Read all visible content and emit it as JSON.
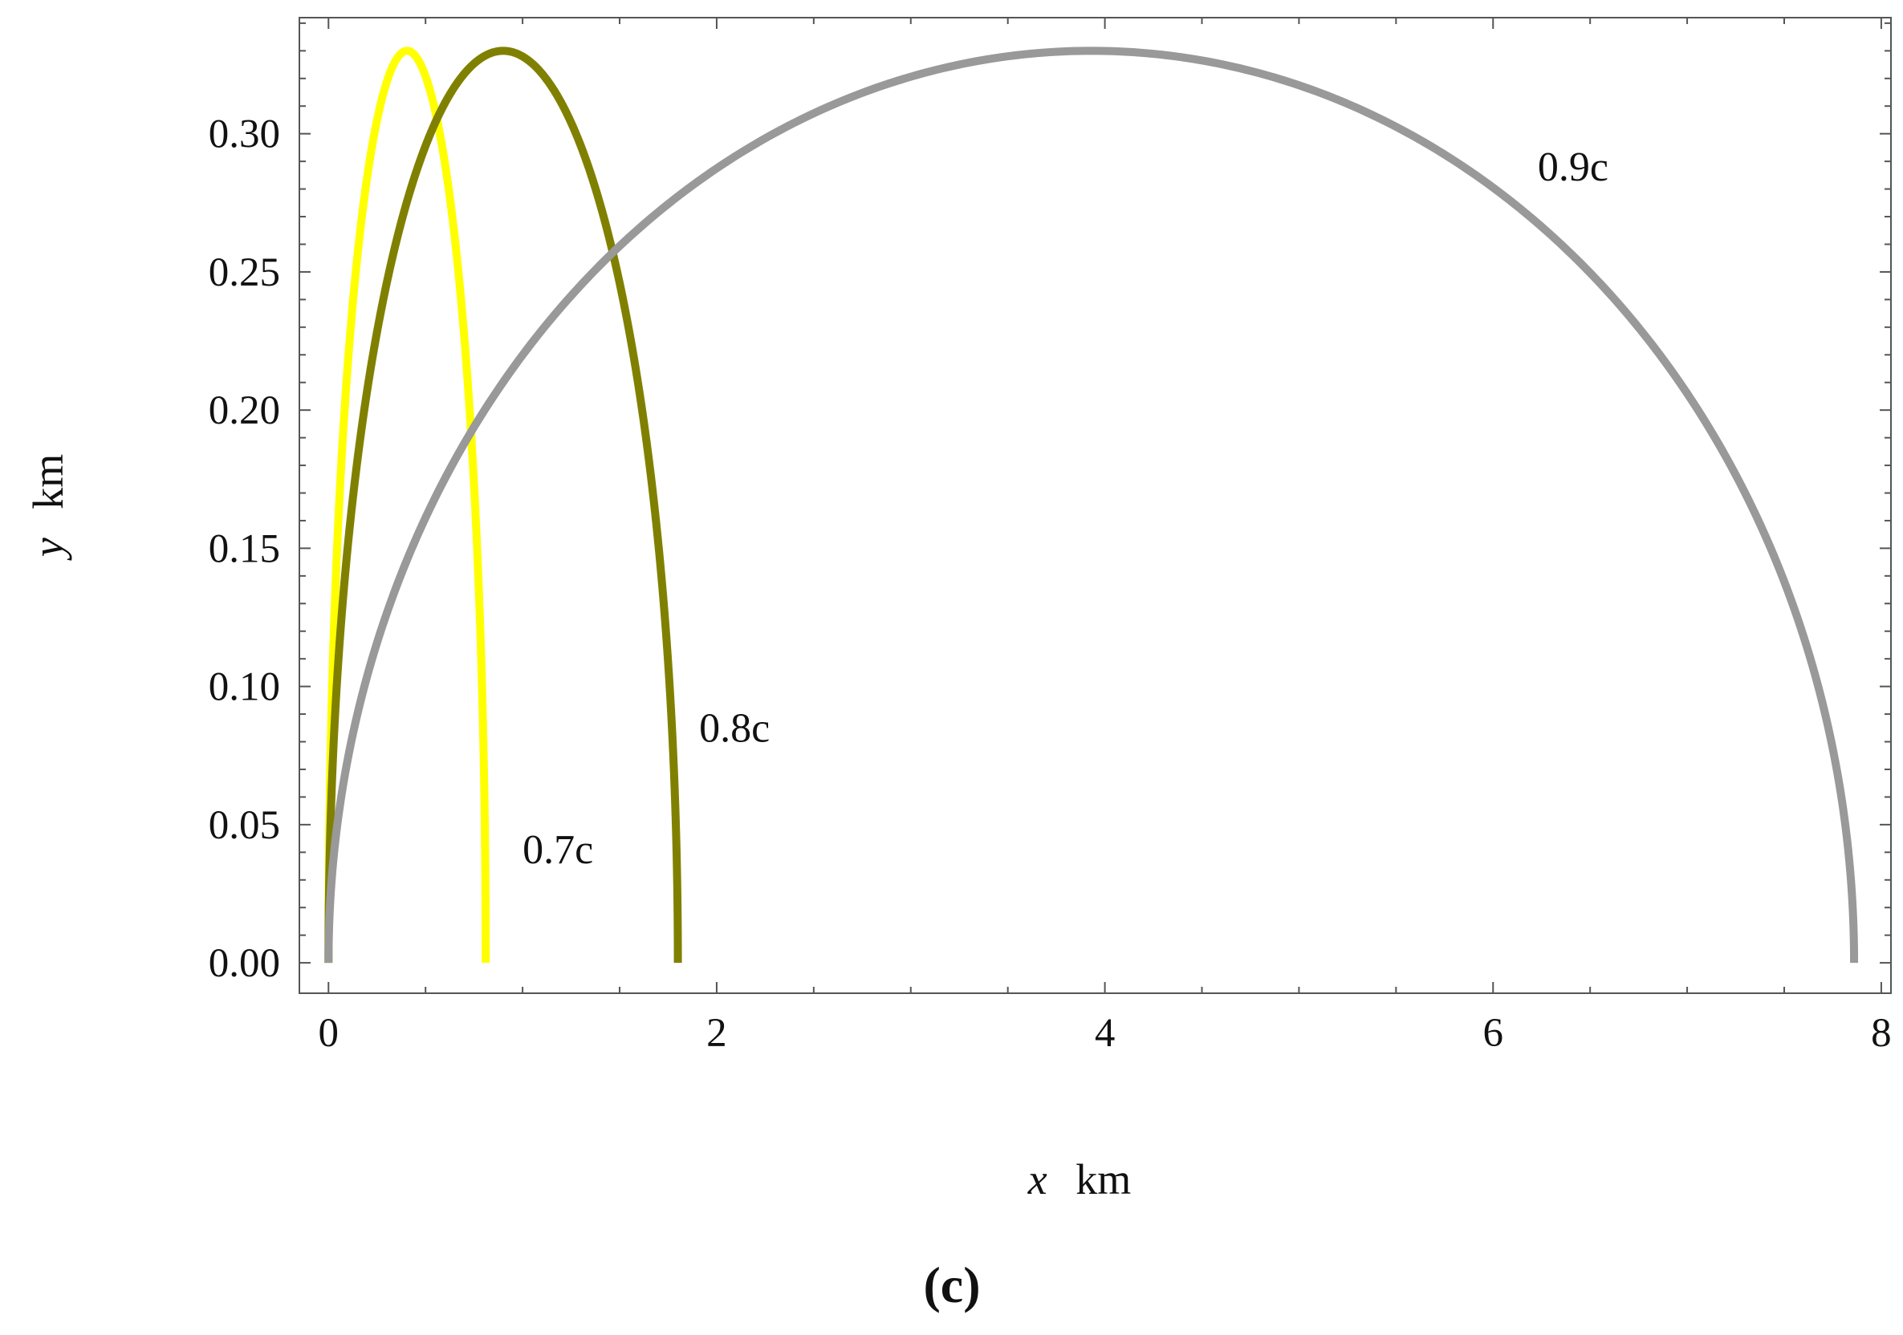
{
  "chart_data": {
    "type": "line",
    "xlabel": {
      "var": "x",
      "unit": "km"
    },
    "ylabel": {
      "var": "y",
      "unit": "km"
    },
    "panel_label": "(c)",
    "xlim": [
      -0.15,
      8.05
    ],
    "ylim": [
      -0.011,
      0.342
    ],
    "x_ticks": [
      {
        "value": 0,
        "label": "0"
      },
      {
        "value": 2,
        "label": "2"
      },
      {
        "value": 4,
        "label": "4"
      },
      {
        "value": 6,
        "label": "6"
      },
      {
        "value": 8,
        "label": "8"
      }
    ],
    "y_ticks": [
      {
        "value": 0.0,
        "label": "0.00"
      },
      {
        "value": 0.05,
        "label": "0.05"
      },
      {
        "value": 0.1,
        "label": "0.10"
      },
      {
        "value": 0.15,
        "label": "0.15"
      },
      {
        "value": 0.2,
        "label": "0.20"
      },
      {
        "value": 0.25,
        "label": "0.25"
      },
      {
        "value": 0.3,
        "label": "0.30"
      }
    ],
    "grid": false,
    "series": [
      {
        "name": "0.7c",
        "color": "#ffff00",
        "shape": "half-ellipse",
        "x_start": 0,
        "x_end": 0.81,
        "peak_y": 0.33,
        "label_at": [
          1.0,
          0.036
        ]
      },
      {
        "name": "0.8c",
        "color": "#808000",
        "shape": "half-ellipse",
        "x_start": 0,
        "x_end": 1.8,
        "peak_y": 0.33,
        "label_at": [
          1.91,
          0.08
        ]
      },
      {
        "name": "0.9c",
        "color": "#999999",
        "shape": "half-ellipse",
        "x_start": 0,
        "x_end": 7.86,
        "peak_y": 0.33,
        "label_at": [
          6.23,
          0.283
        ]
      }
    ]
  }
}
